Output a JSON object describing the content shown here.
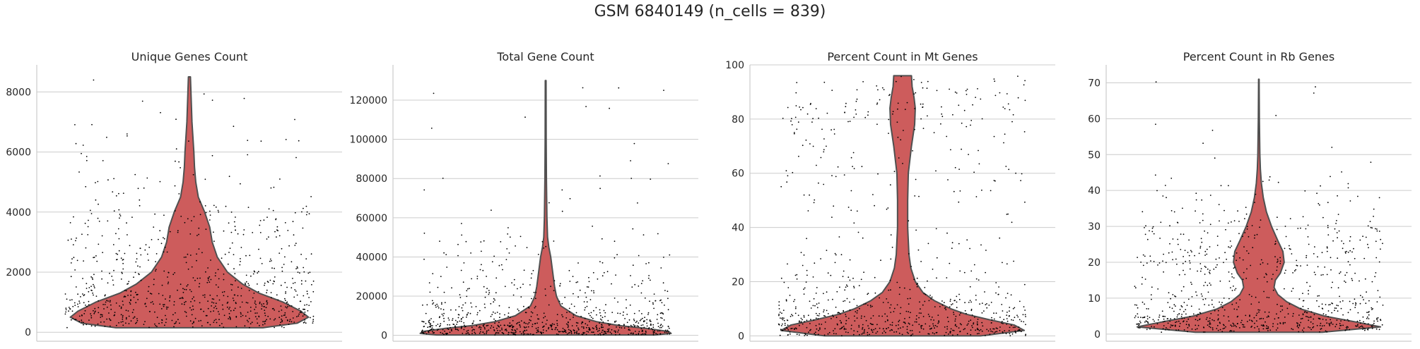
{
  "suptitle": "GSM 6840149 (n_cells = 839)",
  "colors": {
    "violin_fill": "#cd5c5c",
    "violin_edge": "#505050",
    "points": "#000000",
    "grid": "#cccccc",
    "spine": "#cccccc",
    "text": "#262626"
  },
  "chart_data": [
    {
      "type": "violin",
      "title": "Unique Genes Count",
      "ylim": [
        -300,
        8900
      ],
      "yticks": [
        0,
        2000,
        4000,
        6000,
        8000
      ],
      "ytick_labels": [
        "0",
        "2000",
        "4000",
        "6000",
        "8000"
      ],
      "grid": true,
      "n_points": 839,
      "min": 150,
      "max": 8500,
      "median": 800,
      "density": [
        [
          150,
          0.58
        ],
        [
          300,
          0.85
        ],
        [
          500,
          0.94
        ],
        [
          700,
          0.88
        ],
        [
          1000,
          0.74
        ],
        [
          1300,
          0.55
        ],
        [
          1600,
          0.42
        ],
        [
          2000,
          0.3
        ],
        [
          2500,
          0.22
        ],
        [
          3000,
          0.18
        ],
        [
          3500,
          0.16
        ],
        [
          4000,
          0.12
        ],
        [
          4500,
          0.07
        ],
        [
          5000,
          0.05
        ],
        [
          5500,
          0.04
        ],
        [
          6000,
          0.035
        ],
        [
          7000,
          0.02
        ],
        [
          8000,
          0.012
        ],
        [
          8500,
          0.008
        ]
      ]
    },
    {
      "type": "violin",
      "title": "Total Gene Count",
      "ylim": [
        -3000,
        138000
      ],
      "yticks": [
        0,
        20000,
        40000,
        60000,
        80000,
        100000,
        120000
      ],
      "ytick_labels": [
        "0",
        "20000",
        "40000",
        "60000",
        "80000",
        "100000",
        "120000"
      ],
      "grid": true,
      "n_points": 839,
      "min": 200,
      "max": 130000,
      "median": 2500,
      "density": [
        [
          200,
          0.86
        ],
        [
          1000,
          0.99
        ],
        [
          2000,
          0.97
        ],
        [
          3500,
          0.8
        ],
        [
          5000,
          0.58
        ],
        [
          7000,
          0.4
        ],
        [
          10000,
          0.24
        ],
        [
          15000,
          0.12
        ],
        [
          20000,
          0.085
        ],
        [
          25000,
          0.07
        ],
        [
          30000,
          0.06
        ],
        [
          35000,
          0.05
        ],
        [
          40000,
          0.04
        ],
        [
          45000,
          0.025
        ],
        [
          50000,
          0.015
        ],
        [
          60000,
          0.01
        ],
        [
          70000,
          0.008
        ],
        [
          80000,
          0.006
        ],
        [
          100000,
          0.004
        ],
        [
          130000,
          0.003
        ]
      ]
    },
    {
      "type": "violin",
      "title": "Percent Count in Mt Genes",
      "ylim": [
        -2,
        100
      ],
      "yticks": [
        0,
        20,
        40,
        60,
        80,
        100
      ],
      "ytick_labels": [
        "0",
        "20",
        "40",
        "60",
        "80",
        "100"
      ],
      "grid": true,
      "n_points": 839,
      "min": 0,
      "max": 96,
      "median": 4,
      "density": [
        [
          0,
          0.62
        ],
        [
          2,
          0.96
        ],
        [
          4,
          0.88
        ],
        [
          6,
          0.68
        ],
        [
          8,
          0.5
        ],
        [
          10,
          0.38
        ],
        [
          13,
          0.25
        ],
        [
          16,
          0.16
        ],
        [
          20,
          0.1
        ],
        [
          25,
          0.065
        ],
        [
          30,
          0.05
        ],
        [
          40,
          0.04
        ],
        [
          50,
          0.04
        ],
        [
          60,
          0.045
        ],
        [
          70,
          0.07
        ],
        [
          78,
          0.095
        ],
        [
          84,
          0.1
        ],
        [
          88,
          0.09
        ],
        [
          92,
          0.075
        ],
        [
          96,
          0.07
        ]
      ]
    },
    {
      "type": "violin",
      "title": "Percent Count in Rb Genes",
      "ylim": [
        -2,
        75
      ],
      "yticks": [
        0,
        10,
        20,
        30,
        40,
        50,
        60,
        70
      ],
      "ytick_labels": [
        "0",
        "10",
        "20",
        "30",
        "40",
        "50",
        "60",
        "70"
      ],
      "grid": true,
      "n_points": 839,
      "min": 0.5,
      "max": 71,
      "median": 6,
      "density": [
        [
          0.5,
          0.5
        ],
        [
          2,
          0.96
        ],
        [
          3,
          0.82
        ],
        [
          5,
          0.52
        ],
        [
          7,
          0.33
        ],
        [
          9,
          0.22
        ],
        [
          11,
          0.15
        ],
        [
          13,
          0.12
        ],
        [
          15,
          0.13
        ],
        [
          17,
          0.17
        ],
        [
          20,
          0.2
        ],
        [
          23,
          0.19
        ],
        [
          26,
          0.15
        ],
        [
          30,
          0.1
        ],
        [
          34,
          0.06
        ],
        [
          38,
          0.035
        ],
        [
          42,
          0.02
        ],
        [
          46,
          0.012
        ],
        [
          50,
          0.008
        ],
        [
          60,
          0.004
        ],
        [
          71,
          0.002
        ]
      ]
    }
  ]
}
